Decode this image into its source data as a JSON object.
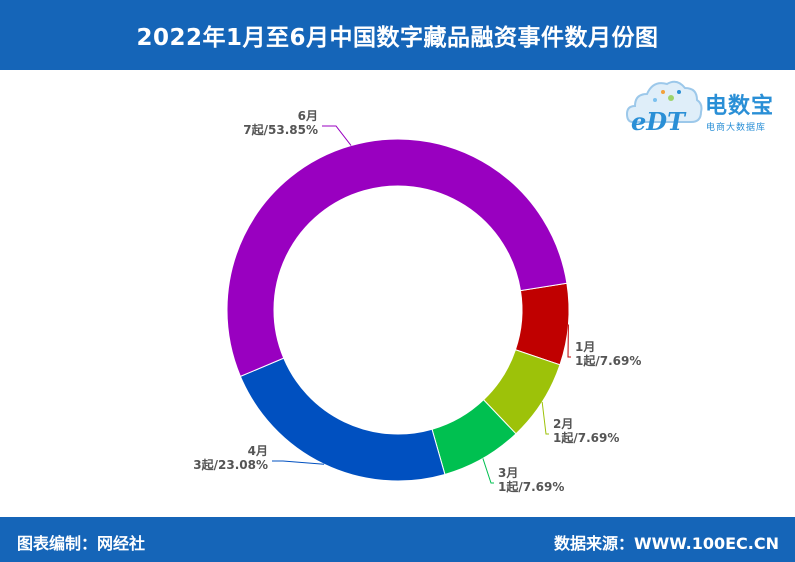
{
  "header": {
    "title": "2022年1月至6月中国数字藏品融资事件数月份图"
  },
  "footer": {
    "left": "图表编制：网经社",
    "right": "数据来源：WWW.100EC.CN"
  },
  "logo": {
    "mark": "eDT",
    "brand": "电数宝",
    "tagline": "电商大数据库"
  },
  "chart_data": {
    "type": "pie",
    "style": "donut",
    "title": "2022年1月至6月中国数字藏品融资事件数月份图",
    "unit": "起",
    "slices": [
      {
        "name": "1月",
        "value": 1,
        "percent": "7.69%",
        "label": "1起/7.69%",
        "color": "#c00000"
      },
      {
        "name": "2月",
        "value": 1,
        "percent": "7.69%",
        "label": "1起/7.69%",
        "color": "#9dc209"
      },
      {
        "name": "3月",
        "value": 1,
        "percent": "7.69%",
        "label": "1起/7.69%",
        "color": "#00c050"
      },
      {
        "name": "4月",
        "value": 3,
        "percent": "23.08%",
        "label": "3起/23.08%",
        "color": "#0050c0"
      },
      {
        "name": "6月",
        "value": 7,
        "percent": "53.85%",
        "label": "7起/53.85%",
        "color": "#9900c0"
      }
    ]
  }
}
